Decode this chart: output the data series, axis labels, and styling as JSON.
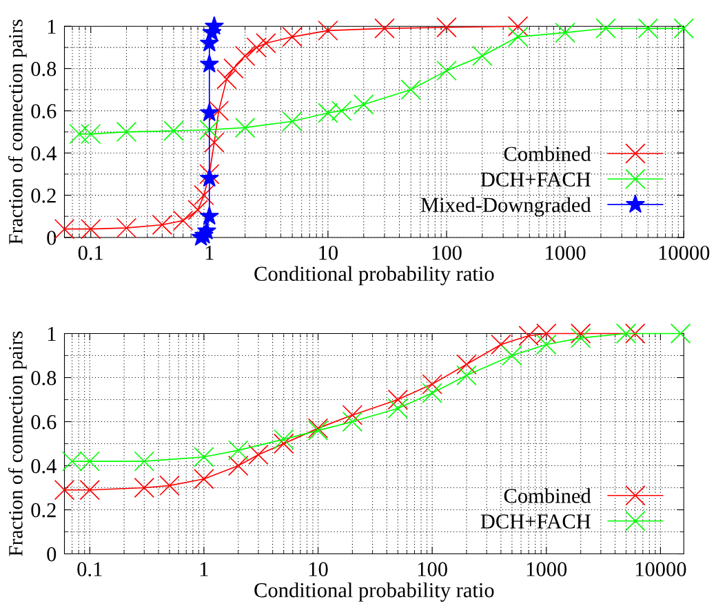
{
  "chart_data": [
    {
      "type": "line",
      "xlabel": "Conditional probability ratio",
      "ylabel": "Fraction of connection pairs",
      "log": "x",
      "xlim": [
        0.06,
        10000
      ],
      "xticks": [
        0.1,
        1,
        10,
        100,
        1000,
        10000
      ],
      "ylim": [
        0,
        1
      ],
      "yticks": [
        0,
        0.2,
        0.4,
        0.6,
        0.8,
        1
      ],
      "grid": true,
      "legend": "bottom right",
      "series": [
        {
          "name": "Combined",
          "color": "#ff0000",
          "marker": "cross",
          "x": [
            0.06,
            0.1,
            0.2,
            0.4,
            0.6,
            0.8,
            0.9,
            1.0,
            1.1,
            1.2,
            1.4,
            1.6,
            2,
            2.5,
            3,
            5,
            10,
            30,
            100,
            400
          ],
          "values": [
            0.04,
            0.04,
            0.045,
            0.06,
            0.08,
            0.13,
            0.2,
            0.3,
            0.45,
            0.6,
            0.75,
            0.8,
            0.86,
            0.9,
            0.92,
            0.95,
            0.98,
            0.99,
            0.995,
            1.0
          ]
        },
        {
          "name": "DCH+FACH",
          "color": "#00ff00",
          "marker": "cross",
          "x": [
            0.08,
            0.1,
            0.2,
            0.5,
            1,
            2,
            5,
            10,
            13,
            20,
            50,
            100,
            200,
            400,
            1000,
            2200,
            5000,
            10000
          ],
          "values": [
            0.49,
            0.49,
            0.5,
            0.505,
            0.51,
            0.52,
            0.55,
            0.59,
            0.6,
            0.63,
            0.7,
            0.79,
            0.86,
            0.95,
            0.97,
            0.99,
            0.99,
            0.99
          ]
        },
        {
          "name": "Mixed-Downgraded",
          "color": "#0000ff",
          "marker": "star",
          "x": [
            0.85,
            0.9,
            0.95,
            1.0,
            1.0,
            1.0,
            1.0,
            1.0,
            1.05,
            1.1
          ],
          "values": [
            0.0,
            0.01,
            0.03,
            0.1,
            0.28,
            0.59,
            0.82,
            0.92,
            0.97,
            1.0
          ]
        }
      ]
    },
    {
      "type": "line",
      "xlabel": "Conditional probability ratio",
      "ylabel": "Fraction of connection pairs",
      "log": "x",
      "xlim": [
        0.06,
        16000
      ],
      "xticks": [
        0.1,
        1,
        10,
        100,
        1000,
        10000
      ],
      "ylim": [
        0,
        1
      ],
      "yticks": [
        0,
        0.2,
        0.4,
        0.6,
        0.8,
        1
      ],
      "grid": true,
      "legend": "bottom right",
      "series": [
        {
          "name": "Combined",
          "color": "#ff0000",
          "marker": "cross",
          "x": [
            0.06,
            0.1,
            0.3,
            0.5,
            1,
            2,
            3,
            5,
            10,
            20,
            50,
            100,
            200,
            400,
            700,
            1000,
            2000,
            6000
          ],
          "values": [
            0.29,
            0.29,
            0.3,
            0.31,
            0.34,
            0.4,
            0.45,
            0.5,
            0.57,
            0.63,
            0.7,
            0.77,
            0.86,
            0.95,
            0.99,
            1.0,
            1.0,
            1.0
          ]
        },
        {
          "name": "DCH+FACH",
          "color": "#00ff00",
          "marker": "cross",
          "x": [
            0.07,
            0.1,
            0.3,
            1,
            2,
            5,
            10,
            20,
            50,
            100,
            200,
            500,
            1000,
            2000,
            5000,
            15000
          ],
          "values": [
            0.42,
            0.42,
            0.42,
            0.44,
            0.47,
            0.52,
            0.56,
            0.6,
            0.66,
            0.73,
            0.81,
            0.9,
            0.95,
            0.98,
            1.0,
            1.0
          ]
        }
      ]
    }
  ]
}
